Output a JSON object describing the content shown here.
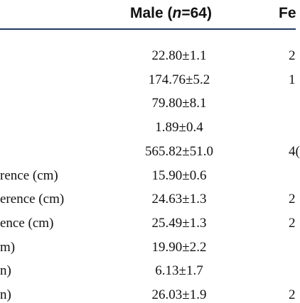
{
  "table": {
    "header": {
      "male_prefix": "Male (",
      "male_n": "n",
      "male_suffix": "=64)",
      "female_partial": "Fe"
    },
    "rows": [
      {
        "label": "",
        "male": "22.80±1.1",
        "female": "2"
      },
      {
        "label": "",
        "male": "174.76±5.2",
        "female": "1"
      },
      {
        "label": "",
        "male": "79.80±8.1",
        "female": ""
      },
      {
        "label": "",
        "male": "1.89±0.4",
        "female": ""
      },
      {
        "label": "",
        "male": "565.82±51.0",
        "female": "4("
      },
      {
        "label": "rence (cm)",
        "male": "15.90±0.6",
        "female": ""
      },
      {
        "label": "erence (cm)",
        "male": "24.63±1.3",
        "female": "2"
      },
      {
        "label": "ence (cm)",
        "male": "25.49±1.3",
        "female": "2"
      },
      {
        "label": "m)",
        "male": "19.90±2.2",
        "female": ""
      },
      {
        "label": "n)",
        "male": "6.13±1.7",
        "female": ""
      },
      {
        "label": "n)",
        "male": "26.03±1.9",
        "female": "2"
      }
    ]
  }
}
